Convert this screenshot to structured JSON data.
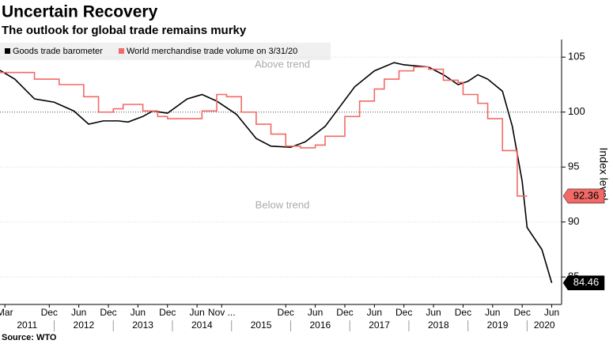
{
  "chart_data": {
    "type": "line",
    "title": "Uncertain Recovery",
    "subtitle": "The outlook for global trade remains murky",
    "y_axis_label": "Index level",
    "source": "Source: WTO",
    "annotations": [
      "Above trend",
      "Below trend"
    ],
    "reference_line": 100,
    "grid": true,
    "xlim": [
      "2011-02",
      "2020-08"
    ],
    "ylim": [
      82.5,
      106.6
    ],
    "yticks": [
      85,
      90,
      95,
      100,
      105
    ],
    "xticks": [
      {
        "value": "2011-03",
        "label": "Mar"
      },
      {
        "value": "2011-12",
        "label": "Dec"
      },
      {
        "value": "2012-06",
        "label": "Jun"
      },
      {
        "value": "2012-12",
        "label": "Dec"
      },
      {
        "value": "2013-06",
        "label": "Jun"
      },
      {
        "value": "2013-12",
        "label": "Dec"
      },
      {
        "value": "2014-06",
        "label": "Jun"
      },
      {
        "value": "2014-11",
        "label": "Nov ..."
      },
      {
        "value": "2015-12",
        "label": "Dec"
      },
      {
        "value": "2016-06",
        "label": "Jun"
      },
      {
        "value": "2016-12",
        "label": "Dec"
      },
      {
        "value": "2017-06",
        "label": "Jun"
      },
      {
        "value": "2017-12",
        "label": "Dec"
      },
      {
        "value": "2018-06",
        "label": "Jun"
      },
      {
        "value": "2018-12",
        "label": "Dec"
      },
      {
        "value": "2019-06",
        "label": "Jun"
      },
      {
        "value": "2019-12",
        "label": "Dec"
      },
      {
        "value": "2020-06",
        "label": "Jun"
      }
    ],
    "year_labels": [
      "2011",
      "2012",
      "2013",
      "2014",
      "2015",
      "2016",
      "2017",
      "2018",
      "2019",
      "2020"
    ],
    "series": [
      {
        "name": "Goods trade barometer",
        "color": "#000000",
        "step": false,
        "x": [
          "2011-02",
          "2011-05",
          "2011-09",
          "2012-01",
          "2012-05",
          "2012-08",
          "2012-11",
          "2013-02",
          "2013-04",
          "2013-07",
          "2013-09",
          "2013-12",
          "2014-04",
          "2014-07",
          "2014-10",
          "2015-02",
          "2015-06",
          "2015-09",
          "2016-01",
          "2016-04",
          "2016-06",
          "2016-08",
          "2016-11",
          "2017-02",
          "2017-06",
          "2017-10",
          "2017-12",
          "2018-05",
          "2018-08",
          "2018-11",
          "2019-01",
          "2019-03",
          "2019-05",
          "2019-08",
          "2019-10",
          "2019-12",
          "2020-01",
          "2020-04",
          "2020-06"
        ],
        "values": [
          103.8,
          103.0,
          101.2,
          100.9,
          100.1,
          98.9,
          99.2,
          99.2,
          99.1,
          99.6,
          100.1,
          99.9,
          101.2,
          101.6,
          101.0,
          99.8,
          97.6,
          96.9,
          96.8,
          97.3,
          98.0,
          98.7,
          100.5,
          102.3,
          103.75,
          104.5,
          104.3,
          104.1,
          103.4,
          102.5,
          102.8,
          103.4,
          103.0,
          101.9,
          98.7,
          93.7,
          89.5,
          87.5,
          84.46
        ]
      },
      {
        "name": "World merchandise trade volume on 3/31/20",
        "color": "#f26a66",
        "step": true,
        "x": [
          "2011-02",
          "2011-09",
          "2012-02",
          "2012-07",
          "2012-10",
          "2013-01",
          "2013-03",
          "2013-07",
          "2013-10",
          "2013-12",
          "2014-07",
          "2014-10",
          "2014-12",
          "2015-03",
          "2015-06",
          "2015-09",
          "2015-12",
          "2016-03",
          "2016-06",
          "2016-08",
          "2016-12",
          "2017-03",
          "2017-06",
          "2017-08",
          "2017-11",
          "2018-02",
          "2018-05",
          "2018-08",
          "2018-11",
          "2018-12",
          "2019-03",
          "2019-05",
          "2019-08",
          "2019-11",
          "2020-01"
        ],
        "values": [
          103.6,
          103.0,
          102.5,
          101.4,
          100.0,
          100.3,
          100.7,
          100.1,
          99.6,
          99.4,
          100.1,
          101.6,
          101.4,
          100.0,
          98.9,
          98.0,
          96.9,
          96.75,
          97.0,
          97.8,
          99.6,
          101.0,
          102.1,
          103.0,
          103.75,
          104.1,
          103.9,
          102.9,
          102.7,
          101.6,
          100.8,
          99.4,
          96.5,
          92.36,
          92.36
        ]
      }
    ]
  }
}
